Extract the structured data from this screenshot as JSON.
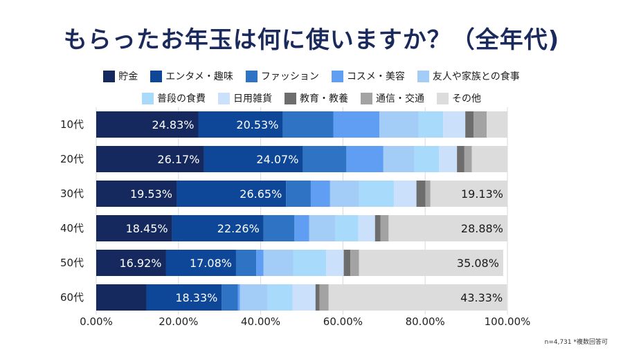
{
  "title": "もらったお年玉は何に使いますか？（全年代)",
  "note": "n=4,731 *複数回答可",
  "colors": [
    "#15295e",
    "#0f4798",
    "#2f74c4",
    "#5f9ef2",
    "#a3cdf7",
    "#a7dafb",
    "#cbe0fa",
    "#6d6d6d",
    "#a3a3a3",
    "#dcdcdc"
  ],
  "chart_data": {
    "type": "bar",
    "orientation": "horizontal",
    "stacked": true,
    "title": "もらったお年玉は何に使いますか？（全年代)",
    "categories": [
      "10代",
      "20代",
      "30代",
      "40代",
      "50代",
      "60代"
    ],
    "xlim": [
      0,
      100
    ],
    "x_ticks": [
      "0.00%",
      "20.00%",
      "40.00%",
      "60.00%",
      "80.00%",
      "100.00%"
    ],
    "grid": true,
    "legend_position": "top",
    "series": [
      {
        "name": "貯金",
        "values": [
          24.83,
          26.17,
          19.53,
          18.45,
          16.92,
          12.2
        ],
        "labels": [
          "24.83%",
          "26.17%",
          "19.53%",
          "18.45%",
          "16.92%",
          ""
        ]
      },
      {
        "name": "エンタメ・趣味",
        "values": [
          20.53,
          24.07,
          26.65,
          22.26,
          17.08,
          18.33
        ],
        "labels": [
          "20.53%",
          "24.07%",
          "26.65%",
          "22.26%",
          "17.08%",
          "18.33%"
        ]
      },
      {
        "name": "ファッション",
        "values": [
          12.3,
          10.6,
          6.0,
          7.5,
          4.9,
          3.9
        ],
        "labels": [
          "",
          "",
          "",
          "",
          "",
          ""
        ]
      },
      {
        "name": "コスメ・美容",
        "values": [
          11.2,
          9.0,
          4.7,
          3.6,
          1.8,
          0.5
        ],
        "labels": [
          "",
          "",
          "",
          "",
          "",
          ""
        ]
      },
      {
        "name": "友人や家族との食事",
        "values": [
          9.5,
          7.5,
          7.0,
          6.4,
          7.2,
          6.8
        ],
        "labels": [
          "",
          "",
          "",
          "",
          "",
          ""
        ]
      },
      {
        "name": "普段の食費",
        "values": [
          6.0,
          6.0,
          8.5,
          5.5,
          8.0,
          6.0
        ],
        "labels": [
          "",
          "",
          "",
          "",
          "",
          ""
        ]
      },
      {
        "name": "日用雑貨",
        "values": [
          5.4,
          4.4,
          5.5,
          4.1,
          4.3,
          5.6
        ],
        "labels": [
          "",
          "",
          "",
          "",
          "",
          ""
        ]
      },
      {
        "name": "教育・教養",
        "values": [
          2.0,
          1.8,
          2.2,
          1.3,
          1.6,
          1.0
        ],
        "labels": [
          "",
          "",
          "",
          "",
          "",
          ""
        ]
      },
      {
        "name": "通信・交通",
        "values": [
          3.2,
          1.8,
          1.2,
          2.0,
          2.1,
          2.2
        ],
        "labels": [
          "",
          "",
          "",
          "",
          "",
          ""
        ]
      },
      {
        "name": "その他",
        "values": [
          5.04,
          8.66,
          19.13,
          28.88,
          35.08,
          43.33
        ],
        "labels": [
          "",
          "",
          "19.13%",
          "28.88%",
          "35.08%",
          "43.33%"
        ]
      }
    ]
  }
}
